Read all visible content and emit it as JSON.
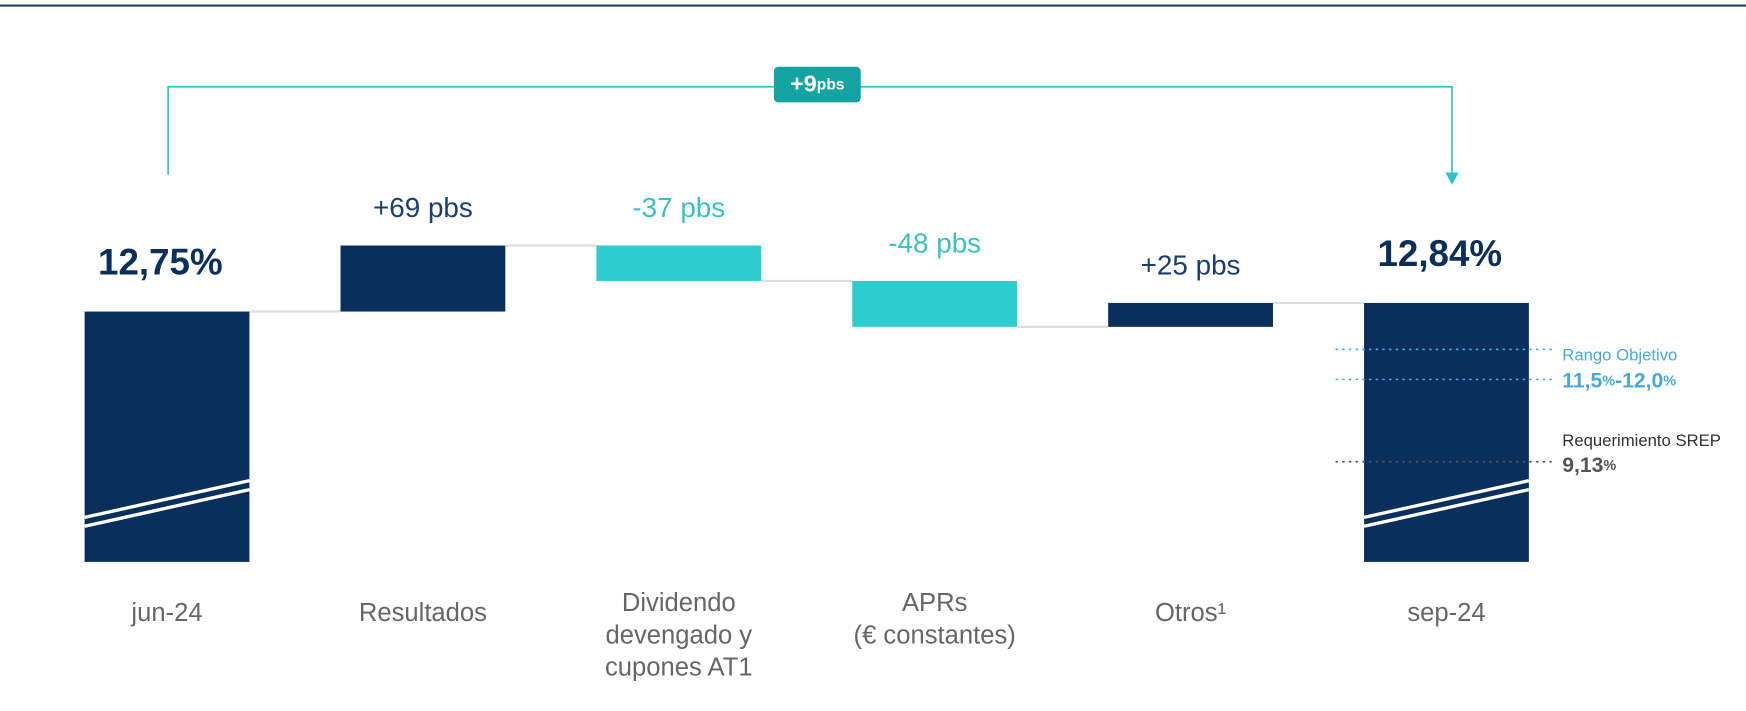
{
  "chart_data": {
    "type": "waterfall",
    "categories": [
      "jun-24",
      "Resultados",
      "Dividendo\ndevengado y\ncupones AT1",
      "APRs\n(€ constantes)",
      "Otros¹",
      "sep-24"
    ],
    "measure": [
      "total",
      "relative",
      "relative",
      "relative",
      "relative",
      "total"
    ],
    "values": [
      12.75,
      69,
      -37,
      -48,
      25,
      12.84
    ],
    "value_labels": [
      "12,75%",
      "+69 pbs",
      "-37 pbs",
      "-48 pbs",
      "+25 pbs",
      "12,84%"
    ],
    "colors": {
      "total": "#0a2f5c",
      "increase": "#0a2f5c",
      "decrease": "#2ecccc"
    },
    "total_change": {
      "value": 9,
      "label": "+9pbs"
    },
    "annotations": [
      {
        "title": "Rango Objetivo",
        "label": "11,5%-12,0%",
        "color": "#4aa8e0"
      },
      {
        "title": "Requerimiento SREP",
        "label": "9,13%",
        "color": "#555555"
      }
    ]
  }
}
